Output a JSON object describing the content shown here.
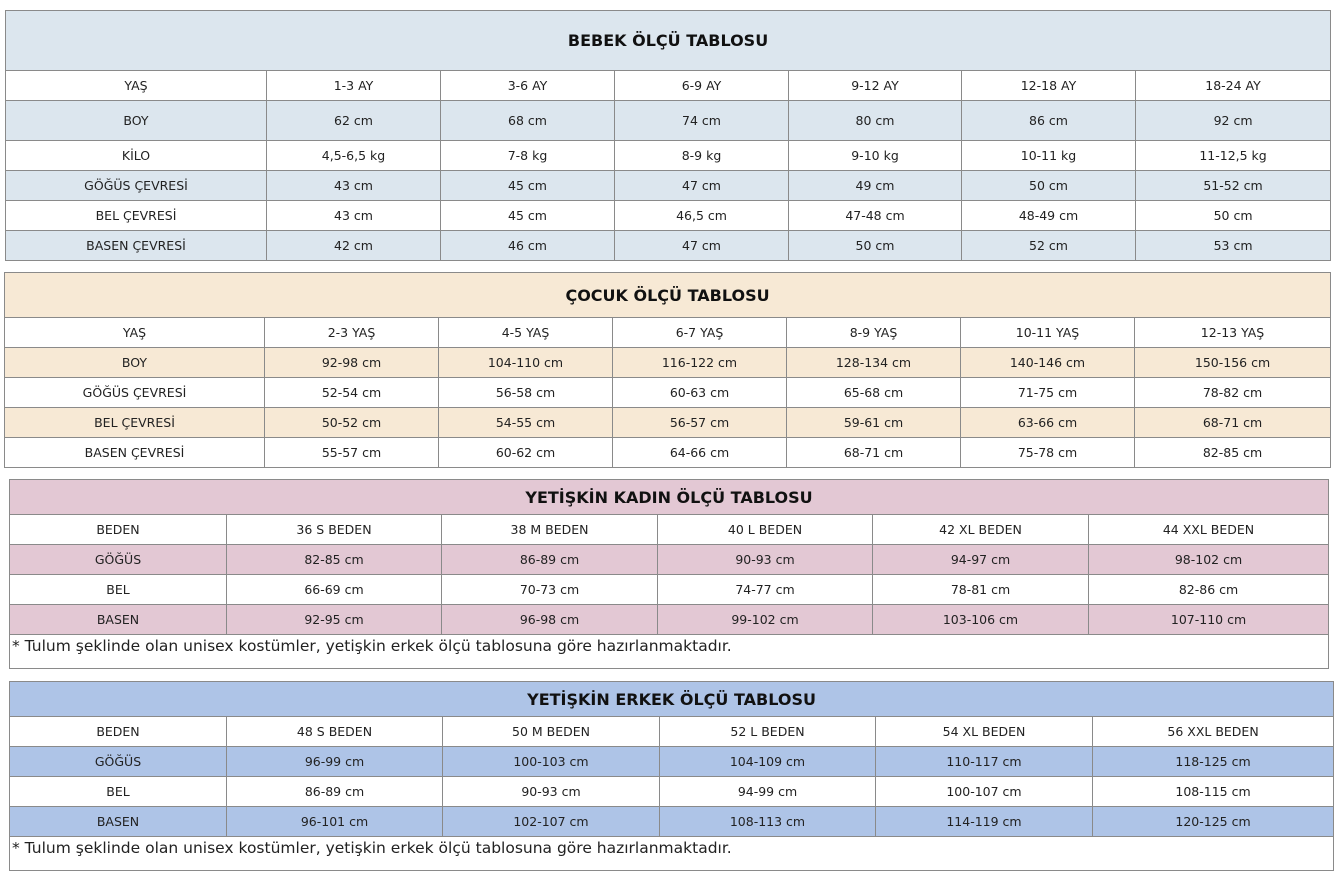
{
  "tables": [
    {
      "title": "BEBEK ÖLÇÜ TABLOSU",
      "color": "#dce6ee",
      "header": [
        "YAŞ",
        "1-3 AY",
        "3-6 AY",
        "6-9 AY",
        "9-12 AY",
        "12-18 AY",
        "18-24 AY"
      ],
      "rows": [
        [
          "BOY",
          "62 cm",
          "68 cm",
          "74 cm",
          "80 cm",
          "86 cm",
          "92 cm"
        ],
        [
          "KİLO",
          "4,5-6,5 kg",
          "7-8 kg",
          "8-9 kg",
          "9-10 kg",
          "10-11 kg",
          "11-12,5 kg"
        ],
        [
          "GÖĞÜS ÇEVRESİ",
          "43 cm",
          "45 cm",
          "47 cm",
          "49 cm",
          "50 cm",
          "51-52 cm"
        ],
        [
          "BEL ÇEVRESİ",
          "43 cm",
          "45 cm",
          "46,5 cm",
          "47-48 cm",
          "48-49 cm",
          "50 cm"
        ],
        [
          "BASEN ÇEVRESİ",
          "42 cm",
          "46 cm",
          "47 cm",
          "50 cm",
          "52 cm",
          "53 cm"
        ]
      ]
    },
    {
      "title": "ÇOCUK ÖLÇÜ TABLOSU",
      "color": "#f7e9d5",
      "header": [
        "YAŞ",
        "2-3 YAŞ",
        "4-5 YAŞ",
        "6-7 YAŞ",
        "8-9 YAŞ",
        "10-11 YAŞ",
        "12-13 YAŞ"
      ],
      "rows": [
        [
          "BOY",
          "92-98 cm",
          "104-110 cm",
          "116-122 cm",
          "128-134 cm",
          "140-146 cm",
          "150-156 cm"
        ],
        [
          "GÖĞÜS ÇEVRESİ",
          "52-54 cm",
          "56-58 cm",
          "60-63 cm",
          "65-68 cm",
          "71-75 cm",
          "78-82 cm"
        ],
        [
          "BEL ÇEVRESİ",
          "50-52 cm",
          "54-55 cm",
          "56-57 cm",
          "59-61 cm",
          "63-66 cm",
          "68-71 cm"
        ],
        [
          "BASEN ÇEVRESİ",
          "55-57 cm",
          "60-62 cm",
          "64-66 cm",
          "68-71 cm",
          "75-78 cm",
          "82-85 cm"
        ]
      ]
    },
    {
      "title": "YETİŞKİN KADIN ÖLÇÜ TABLOSU",
      "color": "#e3c8d4",
      "header": [
        "BEDEN",
        "36 S BEDEN",
        "38 M BEDEN",
        "40 L BEDEN",
        "42 XL BEDEN",
        "44 XXL BEDEN"
      ],
      "rows": [
        [
          "GÖĞÜS",
          "82-85 cm",
          "86-89 cm",
          "90-93 cm",
          "94-97 cm",
          "98-102 cm"
        ],
        [
          "BEL",
          "66-69 cm",
          "70-73 cm",
          "74-77 cm",
          "78-81 cm",
          "82-86 cm"
        ],
        [
          "BASEN",
          "92-95 cm",
          "96-98 cm",
          "99-102 cm",
          "103-106 cm",
          "107-110 cm"
        ]
      ],
      "note": "* Tulum şeklinde olan unisex kostümler, yetişkin erkek ölçü tablosuna göre hazırlanmaktadır."
    },
    {
      "title": "YETİŞKİN ERKEK ÖLÇÜ TABLOSU",
      "color": "#aec4e7",
      "header": [
        "BEDEN",
        "48 S BEDEN",
        "50 M BEDEN",
        "52 L BEDEN",
        "54 XL BEDEN",
        "56 XXL BEDEN"
      ],
      "rows": [
        [
          "GÖĞÜS",
          "96-99 cm",
          "100-103 cm",
          "104-109 cm",
          "110-117 cm",
          "118-125 cm"
        ],
        [
          "BEL",
          "86-89 cm",
          "90-93 cm",
          "94-99 cm",
          "100-107 cm",
          "108-115 cm"
        ],
        [
          "BASEN",
          "96-101 cm",
          "102-107 cm",
          "108-113 cm",
          "114-119 cm",
          "120-125 cm"
        ]
      ],
      "note": "* Tulum şeklinde olan unisex kostümler, yetişkin erkek ölçü  tablosuna göre hazırlanmaktadır."
    }
  ]
}
